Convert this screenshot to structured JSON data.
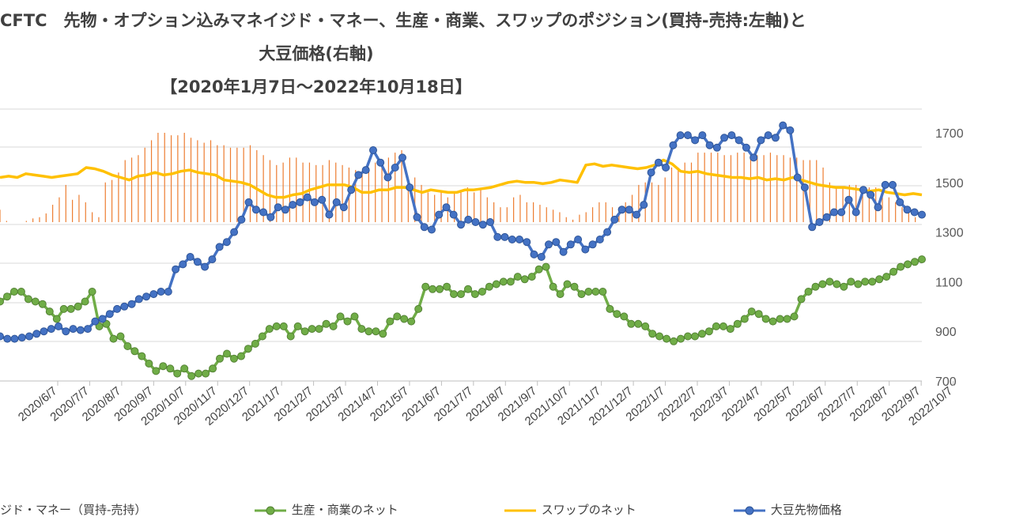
{
  "chart_data": {
    "type": "bar+line",
    "title": {
      "line1": "CFTC　先物・オプション込みマネイジド・マネー、生産・商業、スワップのポジション(買持-売持:左軸)と",
      "line2": "大豆価格(右軸)",
      "line3": "【2020年1月7日～2022年10月18日】"
    },
    "right_axis": {
      "ylim": [
        700,
        1700
      ],
      "ticks": [
        "1700",
        "1500",
        "1300",
        "1100",
        "900",
        "700"
      ]
    },
    "x_tick_labels": [
      "2020/6/7",
      "2020/7/7",
      "2020/8/7",
      "2020/9/7",
      "2020/10/7",
      "2020/11/7",
      "2020/12/7",
      "2021/1/7",
      "2021/2/7",
      "2021/3/7",
      "2021/4/7",
      "2021/5/7",
      "2021/6/7",
      "2021/7/7",
      "2021/8/7",
      "2021/9/7",
      "2021/10/7",
      "2021/11/7",
      "2021/12/7",
      "2022/1/7",
      "2022/2/7",
      "2022/3/7",
      "2022/4/7",
      "2022/5/7",
      "2022/6/7",
      "2022/7/7",
      "2022/8/7",
      "2022/9/7",
      "2022/10/7"
    ],
    "series": [
      {
        "name": "マネイジド・マネー（買持-売持）",
        "type": "bar",
        "color": "#ED7D31",
        "values": [
          1390,
          1345,
          1340,
          1340,
          1345,
          1355,
          1360,
          1375,
          1410,
          1440,
          1490,
          1430,
          1450,
          1420,
          1380,
          1360,
          1500,
          1510,
          1540,
          1590,
          1600,
          1610,
          1640,
          1670,
          1700,
          1700,
          1690,
          1690,
          1700,
          1680,
          1670,
          1660,
          1670,
          1650,
          1650,
          1640,
          1640,
          1640,
          1650,
          1630,
          1610,
          1590,
          1570,
          1580,
          1600,
          1600,
          1580,
          1580,
          1570,
          1570,
          1590,
          1580,
          1570,
          1560,
          1550,
          1540,
          1560,
          1580,
          1560,
          1600,
          1620,
          1630,
          1520,
          1520,
          1490,
          1460,
          1450,
          1460,
          1440,
          1460,
          1470,
          1480,
          1460,
          1470,
          1440,
          1420,
          1400,
          1400,
          1440,
          1450,
          1420,
          1420,
          1410,
          1400,
          1390,
          1380,
          1360,
          1350,
          1370,
          1380,
          1400,
          1420,
          1420,
          1400,
          1400,
          1420,
          1450,
          1490,
          1500,
          1500,
          1490,
          1520,
          1560,
          1560,
          1580,
          1580,
          1620,
          1620,
          1620,
          1620,
          1610,
          1610,
          1620,
          1620,
          1620,
          1610,
          1610,
          1620,
          1610,
          1610,
          1600,
          1600,
          1590,
          1590,
          1590,
          1560,
          1500,
          1480,
          1480,
          1490,
          1490,
          1480,
          1480,
          1480,
          1450,
          1440,
          1420,
          1400,
          1380,
          1360,
          1340
        ]
      },
      {
        "name": "生産・商業のネット",
        "type": "line",
        "color": "#70AD47",
        "values": [
          1020,
          1040,
          1060,
          1060,
          1030,
          1020,
          1010,
          980,
          950,
          990,
          990,
          1000,
          1020,
          1060,
          920,
          930,
          870,
          880,
          840,
          820,
          800,
          770,
          740,
          760,
          750,
          730,
          750,
          720,
          730,
          730,
          750,
          790,
          810,
          790,
          800,
          830,
          850,
          880,
          910,
          920,
          920,
          880,
          920,
          900,
          910,
          910,
          930,
          920,
          960,
          940,
          960,
          910,
          900,
          900,
          890,
          940,
          960,
          950,
          940,
          990,
          1080,
          1070,
          1070,
          1080,
          1050,
          1050,
          1070,
          1050,
          1060,
          1080,
          1090,
          1100,
          1100,
          1120,
          1110,
          1120,
          1150,
          1160,
          1080,
          1050,
          1090,
          1080,
          1050,
          1060,
          1060,
          1060,
          990,
          970,
          960,
          930,
          930,
          920,
          890,
          880,
          870,
          860,
          870,
          880,
          880,
          890,
          900,
          920,
          920,
          910,
          930,
          950,
          980,
          970,
          950,
          940,
          950,
          950,
          960,
          1030,
          1060,
          1080,
          1090,
          1100,
          1090,
          1080,
          1100,
          1090,
          1100,
          1100,
          1110,
          1120,
          1140,
          1160,
          1170,
          1180,
          1190
        ]
      },
      {
        "name": "スワップのネット",
        "type": "line",
        "color": "#FFC000",
        "values": [
          1520,
          1525,
          1520,
          1535,
          1530,
          1525,
          1520,
          1525,
          1530,
          1535,
          1560,
          1555,
          1545,
          1530,
          1520,
          1510,
          1525,
          1530,
          1540,
          1530,
          1535,
          1545,
          1550,
          1540,
          1535,
          1530,
          1510,
          1505,
          1500,
          1490,
          1470,
          1450,
          1440,
          1440,
          1450,
          1455,
          1470,
          1480,
          1490,
          1490,
          1490,
          1480,
          1460,
          1460,
          1470,
          1470,
          1480,
          1480,
          1470,
          1460,
          1470,
          1465,
          1460,
          1460,
          1470,
          1470,
          1475,
          1480,
          1490,
          1500,
          1505,
          1500,
          1500,
          1495,
          1500,
          1510,
          1505,
          1500,
          1570,
          1575,
          1565,
          1570,
          1565,
          1560,
          1555,
          1560,
          1570,
          1590,
          1575,
          1545,
          1540,
          1545,
          1535,
          1530,
          1525,
          1520,
          1520,
          1515,
          1520,
          1510,
          1515,
          1510,
          1520,
          1510,
          1500,
          1490,
          1485,
          1480,
          1480,
          1475,
          1470,
          1465,
          1470,
          1460,
          1455,
          1450,
          1455,
          1450
        ]
      },
      {
        "name": "大豆先物価格",
        "type": "line",
        "color": "#4472C4",
        "values": [
          880,
          870,
          870,
          875,
          880,
          890,
          900,
          910,
          920,
          900,
          910,
          905,
          910,
          940,
          950,
          970,
          990,
          1000,
          1010,
          1030,
          1040,
          1050,
          1060,
          1060,
          1150,
          1170,
          1200,
          1180,
          1160,
          1190,
          1240,
          1260,
          1300,
          1350,
          1420,
          1390,
          1380,
          1360,
          1400,
          1390,
          1410,
          1420,
          1440,
          1420,
          1430,
          1370,
          1420,
          1400,
          1470,
          1530,
          1550,
          1630,
          1580,
          1520,
          1560,
          1600,
          1480,
          1360,
          1320,
          1310,
          1370,
          1400,
          1370,
          1330,
          1350,
          1340,
          1330,
          1340,
          1280,
          1280,
          1270,
          1270,
          1260,
          1210,
          1200,
          1250,
          1260,
          1220,
          1250,
          1270,
          1230,
          1250,
          1270,
          1300,
          1350,
          1390,
          1390,
          1370,
          1410,
          1540,
          1580,
          1560,
          1650,
          1690,
          1690,
          1670,
          1690,
          1650,
          1640,
          1680,
          1690,
          1670,
          1640,
          1600,
          1670,
          1690,
          1680,
          1730,
          1710,
          1520,
          1480,
          1320,
          1340,
          1360,
          1380,
          1380,
          1430,
          1380,
          1470,
          1450,
          1400,
          1490,
          1490,
          1420,
          1390,
          1380,
          1370
        ]
      }
    ]
  },
  "legend": {
    "mm_label": "ジド・マネー（買持-売持）",
    "pc_label": "生産・商業のネット",
    "sw_label": "スワップのネット",
    "sb_label": "大豆先物価格"
  }
}
